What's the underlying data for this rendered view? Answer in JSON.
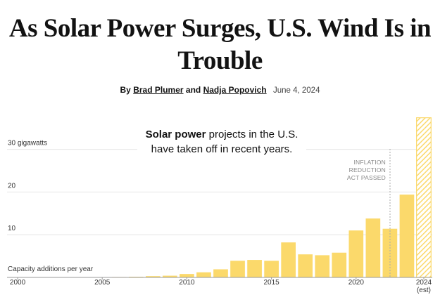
{
  "header": {
    "title": "As Solar Power Surges, U.S. Wind Is in Trouble",
    "by": "By",
    "authors": [
      "Brad Plumer",
      "Nadja Popovich"
    ],
    "and": "and",
    "date": "June 4, 2024"
  },
  "chart_data": {
    "type": "bar",
    "x": [
      2000,
      2001,
      2002,
      2003,
      2004,
      2005,
      2006,
      2007,
      2008,
      2009,
      2010,
      2011,
      2012,
      2013,
      2014,
      2015,
      2016,
      2017,
      2018,
      2019,
      2020,
      2021,
      2022,
      2023,
      2024
    ],
    "values": [
      0.02,
      0.02,
      0.03,
      0.04,
      0.06,
      0.08,
      0.1,
      0.15,
      0.3,
      0.4,
      0.8,
      1.2,
      1.9,
      3.9,
      4.1,
      3.9,
      8.2,
      5.4,
      5.2,
      5.8,
      11.0,
      13.8,
      11.4,
      19.4,
      37.4
    ],
    "color": "#fbd96b",
    "estimate_from": 2024,
    "xlim": [
      1999.5,
      2024.5
    ],
    "xticks": [
      2000,
      2005,
      2010,
      2015,
      2020,
      {
        "value": 2024,
        "label": "2024 (est)"
      }
    ],
    "ylim": [
      0,
      38
    ],
    "yticks": [
      10,
      20,
      {
        "value": 30,
        "label": "30 gigawatts"
      }
    ],
    "ylabel": "Capacity additions per year",
    "grid": true,
    "annotation": {
      "bold": "Solar power",
      "text": " projects in the U.S. have taken off in recent years."
    },
    "event_label": "INFLATION REDUCTION ACT PASSED"
  }
}
